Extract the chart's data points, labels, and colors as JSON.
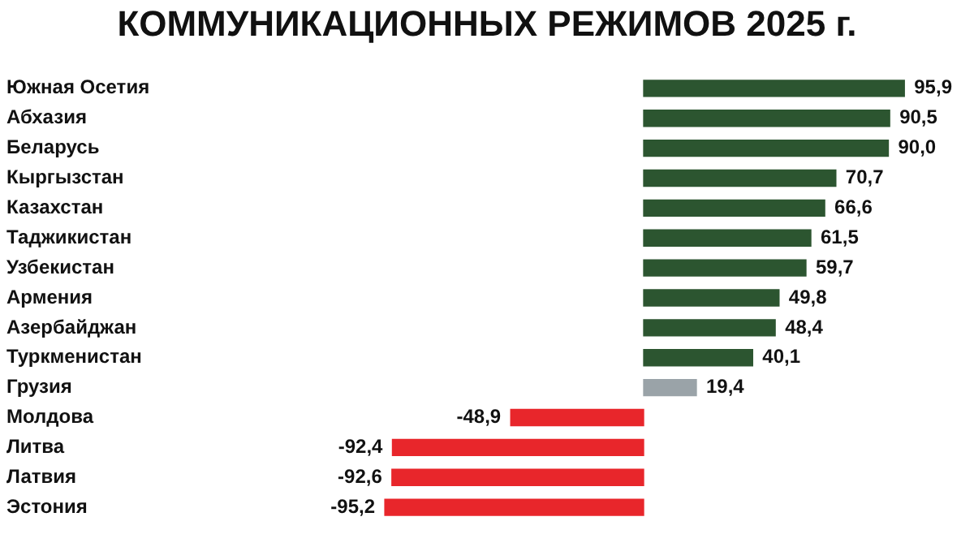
{
  "chart_data": {
    "type": "bar",
    "orientation": "horizontal",
    "title": "КОММУНИКАЦИОННЫХ РЕЖИМОВ 2025 г.",
    "categories": [
      "Южная Осетия",
      "Абхазия",
      "Беларусь",
      "Кыргызстан",
      "Казахстан",
      "Таджикистан",
      "Узбекистан",
      "Армения",
      "Азербайджан",
      "Туркменистан",
      "Грузия",
      "Молдова",
      "Литва",
      "Латвия",
      "Эстония"
    ],
    "values": [
      95.9,
      90.5,
      90.0,
      70.7,
      66.6,
      61.5,
      59.7,
      49.8,
      48.4,
      40.1,
      19.4,
      -48.9,
      -92.4,
      -92.6,
      -95.2
    ],
    "value_labels": [
      "95,9",
      "90,5",
      "90,0",
      "70,7",
      "66,6",
      "61,5",
      "59,7",
      "49,8",
      "48,4",
      "40,1",
      "19,4",
      "-48,9",
      "-92,4",
      "-92,6",
      "-95,2"
    ],
    "colors": [
      "#2c5530",
      "#2c5530",
      "#2c5530",
      "#2c5530",
      "#2c5530",
      "#2c5530",
      "#2c5530",
      "#2c5530",
      "#2c5530",
      "#2c5530",
      "#9aa3a8",
      "#e8262b",
      "#e8262b",
      "#e8262b",
      "#e8262b"
    ],
    "tick_labels": "y",
    "grid": false,
    "legend": false
  }
}
